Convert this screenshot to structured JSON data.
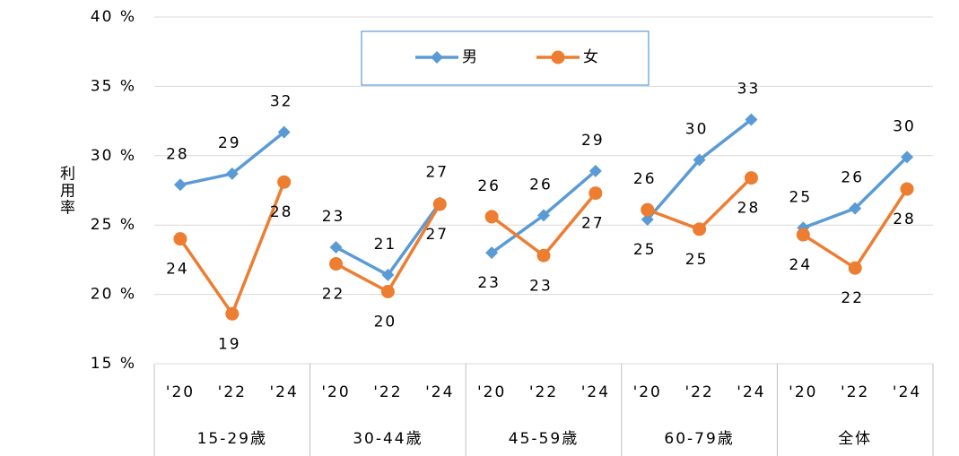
{
  "chart_data": {
    "type": "line",
    "y_label": "利用率",
    "ylim": [
      15,
      40
    ],
    "yticks": [
      {
        "value": 15,
        "label": "15 %"
      },
      {
        "value": 20,
        "label": "20 %"
      },
      {
        "value": 25,
        "label": "25 %"
      },
      {
        "value": 30,
        "label": "30 %"
      },
      {
        "value": 35,
        "label": "35 %"
      },
      {
        "value": 40,
        "label": "40 %"
      }
    ],
    "grid": true,
    "legend": "top",
    "groups": [
      {
        "label": "15-29歳",
        "categories": [
          "'20",
          "'22",
          "'24"
        ]
      },
      {
        "label": "30-44歳",
        "categories": [
          "'20",
          "'22",
          "'24"
        ]
      },
      {
        "label": "45-59歳",
        "categories": [
          "'20",
          "'22",
          "'24"
        ]
      },
      {
        "label": "60-79歳",
        "categories": [
          "'20",
          "'22",
          "'24"
        ]
      },
      {
        "label": "全体",
        "categories": [
          "'20",
          "'22",
          "'24"
        ]
      }
    ],
    "series": [
      {
        "name": "男",
        "color": "#5b9bd5",
        "marker": "diamond",
        "values": [
          27.9,
          28.7,
          31.7,
          23.4,
          21.4,
          26.6,
          23.0,
          25.7,
          28.9,
          25.4,
          29.7,
          32.6,
          24.8,
          26.2,
          29.9
        ],
        "value_labels": [
          "28",
          "29",
          "32",
          "23",
          "21",
          "27",
          "23",
          "26",
          "29",
          "25",
          "30",
          "33",
          "25",
          "26",
          "30"
        ]
      },
      {
        "name": "女",
        "color": "#ed7d31",
        "marker": "circle",
        "values": [
          24.0,
          18.6,
          28.1,
          22.2,
          20.2,
          26.5,
          25.6,
          22.8,
          27.3,
          26.1,
          24.7,
          28.4,
          24.3,
          21.9,
          27.6
        ],
        "value_labels": [
          "24",
          "19",
          "28",
          "22",
          "20",
          "27",
          "26",
          "23",
          "27",
          "26",
          "25",
          "28",
          "24",
          "22",
          "28"
        ]
      }
    ]
  }
}
